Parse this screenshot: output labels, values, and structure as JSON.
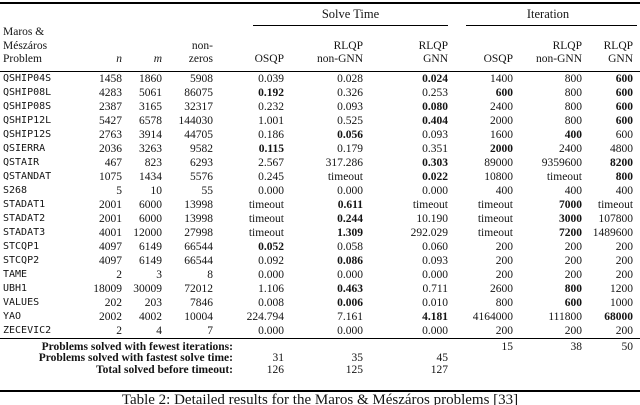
{
  "table": {
    "group_headers": {
      "solve_time": "Solve Time",
      "iteration": "Iteration"
    },
    "column_headers": {
      "problem": [
        "Maros & Mészáros",
        "Problem"
      ],
      "n": "n",
      "m": "m",
      "nonzeros": [
        "non-",
        "zeros"
      ],
      "solve_osqp": "OSQP",
      "solve_rlqp_non_gnn": [
        "RLQP",
        "non-GNN"
      ],
      "solve_rlqp_gnn": [
        "RLQP",
        "GNN"
      ],
      "iter_osqp": "OSQP",
      "iter_rlqp_non_gnn": [
        "RLQP",
        "non-GNN"
      ],
      "iter_rlqp_gnn": [
        "RLQP",
        "GNN"
      ]
    },
    "rows": [
      {
        "problem": "QSHIP04S",
        "n": "1458",
        "m": "1860",
        "nonzeros": "5908",
        "solve_time": [
          {
            "value": "0.039",
            "bold": false
          },
          {
            "value": "0.028",
            "bold": false
          },
          {
            "value": "0.024",
            "bold": true
          }
        ],
        "iteration": [
          {
            "value": "1400",
            "bold": false
          },
          {
            "value": "800",
            "bold": false
          },
          {
            "value": "600",
            "bold": true
          }
        ]
      },
      {
        "problem": "QSHIP08L",
        "n": "4283",
        "m": "5061",
        "nonzeros": "86075",
        "solve_time": [
          {
            "value": "0.192",
            "bold": true
          },
          {
            "value": "0.326",
            "bold": false
          },
          {
            "value": "0.253",
            "bold": false
          }
        ],
        "iteration": [
          {
            "value": "600",
            "bold": true
          },
          {
            "value": "800",
            "bold": false
          },
          {
            "value": "600",
            "bold": true
          }
        ]
      },
      {
        "problem": "QSHIP08S",
        "n": "2387",
        "m": "3165",
        "nonzeros": "32317",
        "solve_time": [
          {
            "value": "0.232",
            "bold": false
          },
          {
            "value": "0.093",
            "bold": false
          },
          {
            "value": "0.080",
            "bold": true
          }
        ],
        "iteration": [
          {
            "value": "2400",
            "bold": false
          },
          {
            "value": "800",
            "bold": false
          },
          {
            "value": "600",
            "bold": true
          }
        ]
      },
      {
        "problem": "QSHIP12L",
        "n": "5427",
        "m": "6578",
        "nonzeros": "144030",
        "solve_time": [
          {
            "value": "1.001",
            "bold": false
          },
          {
            "value": "0.525",
            "bold": false
          },
          {
            "value": "0.404",
            "bold": true
          }
        ],
        "iteration": [
          {
            "value": "2000",
            "bold": false
          },
          {
            "value": "800",
            "bold": false
          },
          {
            "value": "600",
            "bold": true
          }
        ]
      },
      {
        "problem": "QSHIP12S",
        "n": "2763",
        "m": "3914",
        "nonzeros": "44705",
        "solve_time": [
          {
            "value": "0.186",
            "bold": false
          },
          {
            "value": "0.056",
            "bold": true
          },
          {
            "value": "0.093",
            "bold": false
          }
        ],
        "iteration": [
          {
            "value": "1600",
            "bold": false
          },
          {
            "value": "400",
            "bold": true
          },
          {
            "value": "600",
            "bold": false
          }
        ]
      },
      {
        "problem": "QSIERRA",
        "n": "2036",
        "m": "3263",
        "nonzeros": "9582",
        "solve_time": [
          {
            "value": "0.115",
            "bold": true
          },
          {
            "value": "0.179",
            "bold": false
          },
          {
            "value": "0.351",
            "bold": false
          }
        ],
        "iteration": [
          {
            "value": "2000",
            "bold": true
          },
          {
            "value": "2400",
            "bold": false
          },
          {
            "value": "4800",
            "bold": false
          }
        ]
      },
      {
        "problem": "QSTAIR",
        "n": "467",
        "m": "823",
        "nonzeros": "6293",
        "solve_time": [
          {
            "value": "2.567",
            "bold": false
          },
          {
            "value": "317.286",
            "bold": false
          },
          {
            "value": "0.303",
            "bold": true
          }
        ],
        "iteration": [
          {
            "value": "89000",
            "bold": false
          },
          {
            "value": "9359600",
            "bold": false
          },
          {
            "value": "8200",
            "bold": true
          }
        ]
      },
      {
        "problem": "QSTANDAT",
        "n": "1075",
        "m": "1434",
        "nonzeros": "5576",
        "solve_time": [
          {
            "value": "0.245",
            "bold": false
          },
          {
            "value": "timeout",
            "bold": false
          },
          {
            "value": "0.022",
            "bold": true
          }
        ],
        "iteration": [
          {
            "value": "10800",
            "bold": false
          },
          {
            "value": "timeout",
            "bold": false
          },
          {
            "value": "800",
            "bold": true
          }
        ]
      },
      {
        "problem": "S268",
        "n": "5",
        "m": "10",
        "nonzeros": "55",
        "solve_time": [
          {
            "value": "0.000",
            "bold": false
          },
          {
            "value": "0.000",
            "bold": false
          },
          {
            "value": "0.000",
            "bold": false
          }
        ],
        "iteration": [
          {
            "value": "400",
            "bold": false
          },
          {
            "value": "400",
            "bold": false
          },
          {
            "value": "400",
            "bold": false
          }
        ]
      },
      {
        "problem": "STADAT1",
        "n": "2001",
        "m": "6000",
        "nonzeros": "13998",
        "solve_time": [
          {
            "value": "timeout",
            "bold": false
          },
          {
            "value": "0.611",
            "bold": true
          },
          {
            "value": "timeout",
            "bold": false
          }
        ],
        "iteration": [
          {
            "value": "timeout",
            "bold": false
          },
          {
            "value": "7000",
            "bold": true
          },
          {
            "value": "timeout",
            "bold": false
          }
        ]
      },
      {
        "problem": "STADAT2",
        "n": "2001",
        "m": "6000",
        "nonzeros": "13998",
        "solve_time": [
          {
            "value": "timeout",
            "bold": false
          },
          {
            "value": "0.244",
            "bold": true
          },
          {
            "value": "10.190",
            "bold": false
          }
        ],
        "iteration": [
          {
            "value": "timeout",
            "bold": false
          },
          {
            "value": "3000",
            "bold": true
          },
          {
            "value": "107800",
            "bold": false
          }
        ]
      },
      {
        "problem": "STADAT3",
        "n": "4001",
        "m": "12000",
        "nonzeros": "27998",
        "solve_time": [
          {
            "value": "timeout",
            "bold": false
          },
          {
            "value": "1.309",
            "bold": true
          },
          {
            "value": "292.029",
            "bold": false
          }
        ],
        "iteration": [
          {
            "value": "timeout",
            "bold": false
          },
          {
            "value": "7200",
            "bold": true
          },
          {
            "value": "1489600",
            "bold": false
          }
        ]
      },
      {
        "problem": "STCQP1",
        "n": "4097",
        "m": "6149",
        "nonzeros": "66544",
        "solve_time": [
          {
            "value": "0.052",
            "bold": true
          },
          {
            "value": "0.058",
            "bold": false
          },
          {
            "value": "0.060",
            "bold": false
          }
        ],
        "iteration": [
          {
            "value": "200",
            "bold": false
          },
          {
            "value": "200",
            "bold": false
          },
          {
            "value": "200",
            "bold": false
          }
        ]
      },
      {
        "problem": "STCQP2",
        "n": "4097",
        "m": "6149",
        "nonzeros": "66544",
        "solve_time": [
          {
            "value": "0.092",
            "bold": false
          },
          {
            "value": "0.086",
            "bold": true
          },
          {
            "value": "0.093",
            "bold": false
          }
        ],
        "iteration": [
          {
            "value": "200",
            "bold": false
          },
          {
            "value": "200",
            "bold": false
          },
          {
            "value": "200",
            "bold": false
          }
        ]
      },
      {
        "problem": "TAME",
        "n": "2",
        "m": "3",
        "nonzeros": "8",
        "solve_time": [
          {
            "value": "0.000",
            "bold": false
          },
          {
            "value": "0.000",
            "bold": false
          },
          {
            "value": "0.000",
            "bold": false
          }
        ],
        "iteration": [
          {
            "value": "200",
            "bold": false
          },
          {
            "value": "200",
            "bold": false
          },
          {
            "value": "200",
            "bold": false
          }
        ]
      },
      {
        "problem": "UBH1",
        "n": "18009",
        "m": "30009",
        "nonzeros": "72012",
        "solve_time": [
          {
            "value": "1.106",
            "bold": false
          },
          {
            "value": "0.463",
            "bold": true
          },
          {
            "value": "0.711",
            "bold": false
          }
        ],
        "iteration": [
          {
            "value": "2600",
            "bold": false
          },
          {
            "value": "800",
            "bold": true
          },
          {
            "value": "1200",
            "bold": false
          }
        ]
      },
      {
        "problem": "VALUES",
        "n": "202",
        "m": "203",
        "nonzeros": "7846",
        "solve_time": [
          {
            "value": "0.008",
            "bold": false
          },
          {
            "value": "0.006",
            "bold": true
          },
          {
            "value": "0.010",
            "bold": false
          }
        ],
        "iteration": [
          {
            "value": "800",
            "bold": false
          },
          {
            "value": "600",
            "bold": true
          },
          {
            "value": "1000",
            "bold": false
          }
        ]
      },
      {
        "problem": "YAO",
        "n": "2002",
        "m": "4002",
        "nonzeros": "10004",
        "solve_time": [
          {
            "value": "224.794",
            "bold": false
          },
          {
            "value": "7.161",
            "bold": false
          },
          {
            "value": "4.181",
            "bold": true
          }
        ],
        "iteration": [
          {
            "value": "4164000",
            "bold": false
          },
          {
            "value": "111800",
            "bold": false
          },
          {
            "value": "68000",
            "bold": true
          }
        ]
      },
      {
        "problem": "ZECEVIC2",
        "n": "2",
        "m": "4",
        "nonzeros": "7",
        "solve_time": [
          {
            "value": "0.000",
            "bold": false
          },
          {
            "value": "0.000",
            "bold": false
          },
          {
            "value": "0.000",
            "bold": false
          }
        ],
        "iteration": [
          {
            "value": "200",
            "bold": false
          },
          {
            "value": "200",
            "bold": false
          },
          {
            "value": "200",
            "bold": false
          }
        ]
      }
    ],
    "summary": [
      {
        "label": "Problems solved with fewest iterations:",
        "values": [
          "",
          "",
          "",
          "15",
          "38",
          "50"
        ]
      },
      {
        "label": "Problems solved with fastest solve time:",
        "values": [
          "31",
          "35",
          "45",
          "",
          "",
          ""
        ]
      },
      {
        "label": "Total solved before timeout:",
        "values": [
          "126",
          "125",
          "127",
          "",
          "",
          ""
        ]
      }
    ],
    "caption": "Table 2: Detailed results for the Maros & Mészáros problems [33]"
  }
}
